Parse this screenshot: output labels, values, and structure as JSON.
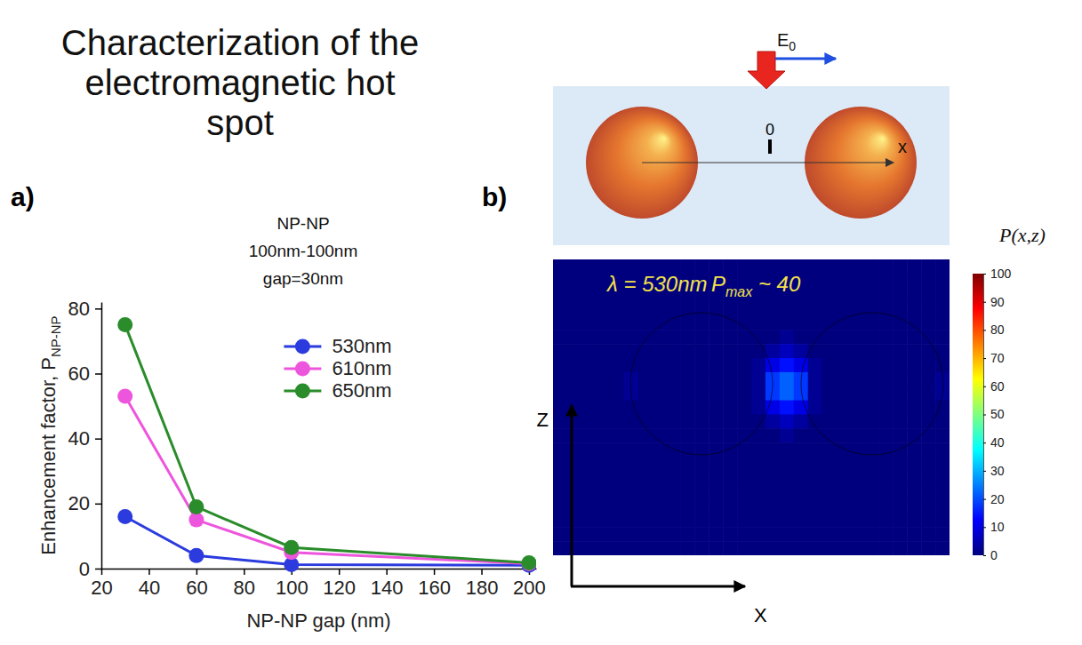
{
  "header": {
    "title": "Characterization of the electromagnetic hot spot"
  },
  "panel_labels": [
    "a)",
    "b)"
  ],
  "diagram": {
    "field_label": {
      "text": "E",
      "subscript": "0"
    },
    "origin": 0,
    "axis_label": "x"
  },
  "chart_data": [
    {
      "type": "line",
      "title": [
        "NP-NP",
        "100nm-100nm",
        "gap=30nm"
      ],
      "x_label": "NP-NP gap (nm)",
      "y_label": {
        "text": "Enhancement factor, P",
        "subscript": "NP-NP"
      },
      "x": [
        30,
        60,
        100,
        200
      ],
      "series": [
        {
          "name": "530nm",
          "color": "#2b3bde",
          "values": [
            16,
            4,
            1.2,
            1
          ]
        },
        {
          "name": "610nm",
          "color": "#ee55dd",
          "values": [
            53,
            15,
            5,
            1.5
          ]
        },
        {
          "name": "650nm",
          "color": "#2a8c2a",
          "values": [
            75,
            19,
            6.5,
            1.8
          ]
        }
      ],
      "xlim": [
        20,
        203
      ],
      "xticks": [
        20,
        40,
        60,
        80,
        100,
        120,
        140,
        160,
        180,
        200
      ],
      "ylim": [
        0,
        82
      ],
      "yticks": [
        0,
        20,
        40,
        60,
        80
      ],
      "grid": false,
      "legend": "upper right",
      "marker": "circle",
      "line_style": "solid"
    },
    {
      "type": "heatmap",
      "annotations": [
        {
          "text": "λ = 530nm"
        },
        {
          "text": "P",
          "subscript": "max",
          "suffix": " ~ 40"
        }
      ],
      "x_label": "X",
      "y_label": "Z",
      "tick_labels": false,
      "colorbar": {
        "title": "P(x,z)",
        "range": [
          0,
          100
        ],
        "ticks": [
          0,
          10,
          20,
          30,
          40,
          50,
          60,
          70,
          80,
          90,
          100
        ]
      },
      "cells": [
        [
          0,
          0,
          0,
          0,
          0,
          0,
          0,
          0,
          0,
          0,
          0,
          0,
          0,
          0,
          0,
          0,
          0,
          0,
          0,
          0,
          0,
          0,
          0,
          0,
          0,
          0,
          0,
          0
        ],
        [
          0,
          0,
          0,
          0,
          0,
          0,
          0,
          0,
          0,
          0,
          0,
          0,
          0,
          0,
          0,
          0,
          0,
          0,
          0,
          0,
          0,
          0,
          0,
          0,
          0,
          0,
          0,
          0
        ],
        [
          0,
          0,
          0,
          0,
          0,
          0,
          0,
          0,
          0,
          0,
          0,
          0,
          0,
          0,
          0,
          0,
          0,
          0,
          0,
          0,
          0,
          0,
          0,
          0,
          0,
          0,
          0,
          0
        ],
        [
          0,
          0,
          0,
          0,
          0,
          0,
          0,
          0,
          0,
          0,
          0,
          0,
          0,
          0,
          0,
          0,
          0,
          0,
          0,
          0,
          0,
          0,
          0,
          0,
          0,
          0,
          0,
          0
        ],
        [
          0,
          0,
          0,
          0,
          0,
          0,
          0,
          0,
          0,
          0,
          0,
          0,
          0,
          0,
          0,
          0,
          0,
          0,
          0,
          0,
          0,
          0,
          0,
          0,
          0,
          0,
          0,
          0
        ],
        [
          0,
          0,
          0,
          0,
          0,
          0,
          0,
          0,
          0,
          0,
          0,
          0,
          0,
          0,
          0,
          0,
          2,
          0,
          0,
          0,
          0,
          0,
          0,
          0,
          0,
          0,
          0,
          0
        ],
        [
          0,
          0,
          0,
          0,
          0,
          0,
          0,
          0,
          0,
          0,
          0,
          0,
          0,
          0,
          0,
          3,
          6,
          3,
          0,
          0,
          0,
          0,
          0,
          0,
          0,
          0,
          0,
          0
        ],
        [
          0,
          0,
          0,
          0,
          0,
          0,
          0,
          0,
          0,
          0,
          0,
          0,
          0,
          0,
          2,
          10,
          14,
          10,
          2,
          0,
          0,
          0,
          0,
          0,
          0,
          0,
          0,
          0
        ],
        [
          0,
          0,
          0,
          0,
          0,
          2,
          0,
          0,
          0,
          0,
          0,
          0,
          0,
          0,
          2,
          18,
          22,
          18,
          2,
          0,
          0,
          0,
          0,
          0,
          0,
          0,
          0,
          2
        ],
        [
          0,
          0,
          0,
          0,
          0,
          2,
          0,
          0,
          0,
          0,
          0,
          0,
          0,
          0,
          2,
          18,
          22,
          18,
          2,
          0,
          0,
          0,
          0,
          0,
          0,
          0,
          0,
          2
        ],
        [
          0,
          0,
          0,
          0,
          0,
          0,
          0,
          0,
          0,
          0,
          0,
          0,
          0,
          0,
          2,
          10,
          14,
          10,
          2,
          0,
          0,
          0,
          0,
          0,
          0,
          0,
          0,
          0
        ],
        [
          0,
          0,
          0,
          0,
          0,
          0,
          0,
          0,
          0,
          0,
          0,
          0,
          0,
          0,
          0,
          3,
          6,
          3,
          0,
          0,
          0,
          0,
          0,
          0,
          0,
          0,
          0,
          0
        ],
        [
          0,
          0,
          0,
          0,
          0,
          0,
          0,
          0,
          0,
          0,
          0,
          0,
          0,
          0,
          0,
          0,
          2,
          0,
          0,
          0,
          0,
          0,
          0,
          0,
          0,
          0,
          0,
          0
        ],
        [
          0,
          0,
          0,
          0,
          0,
          0,
          0,
          0,
          0,
          0,
          0,
          0,
          0,
          0,
          0,
          0,
          0,
          0,
          0,
          0,
          0,
          0,
          0,
          0,
          0,
          0,
          0,
          0
        ],
        [
          0,
          0,
          0,
          0,
          0,
          0,
          0,
          0,
          0,
          0,
          0,
          0,
          0,
          0,
          0,
          0,
          0,
          0,
          0,
          0,
          0,
          0,
          0,
          0,
          0,
          0,
          0,
          0
        ],
        [
          0,
          0,
          0,
          0,
          0,
          0,
          0,
          0,
          0,
          0,
          0,
          0,
          0,
          0,
          0,
          0,
          0,
          0,
          0,
          0,
          0,
          0,
          0,
          0,
          0,
          0,
          0,
          0
        ],
        [
          0,
          0,
          0,
          0,
          0,
          0,
          0,
          0,
          0,
          0,
          0,
          0,
          0,
          0,
          0,
          0,
          0,
          0,
          0,
          0,
          0,
          0,
          0,
          0,
          0,
          0,
          0,
          0
        ],
        [
          0,
          0,
          0,
          0,
          0,
          0,
          0,
          0,
          0,
          0,
          0,
          0,
          0,
          0,
          0,
          0,
          0,
          0,
          0,
          0,
          0,
          0,
          0,
          0,
          0,
          0,
          0,
          0
        ],
        [
          0,
          0,
          0,
          0,
          0,
          0,
          0,
          0,
          0,
          0,
          0,
          0,
          0,
          0,
          0,
          0,
          0,
          0,
          0,
          0,
          0,
          0,
          0,
          0,
          0,
          0,
          0,
          0
        ],
        [
          0,
          0,
          0,
          0,
          0,
          0,
          0,
          0,
          0,
          0,
          0,
          0,
          0,
          0,
          0,
          0,
          0,
          0,
          0,
          0,
          0,
          0,
          0,
          0,
          0,
          0,
          0,
          0
        ],
        [
          0,
          0,
          0,
          0,
          0,
          0,
          0,
          0,
          0,
          0,
          0,
          0,
          0,
          0,
          0,
          0,
          0,
          0,
          0,
          0,
          0,
          0,
          0,
          0,
          0,
          0,
          0,
          0
        ]
      ]
    }
  ]
}
